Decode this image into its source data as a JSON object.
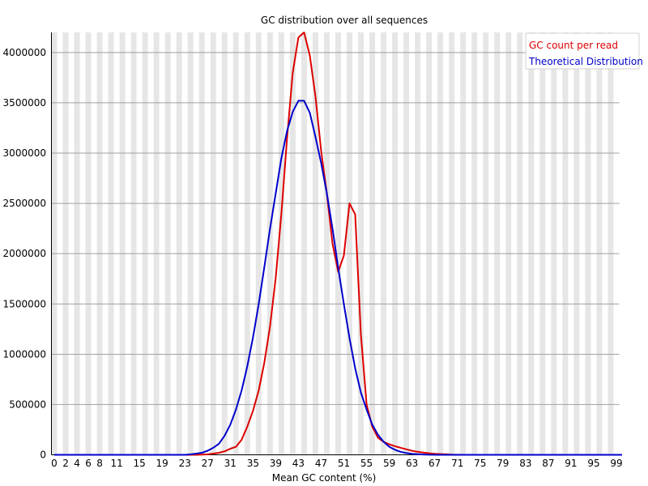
{
  "chart_data": {
    "type": "line",
    "title": "GC distribution over all sequences",
    "xlabel": "Mean GC content (%)",
    "ylabel": "",
    "xlim": [
      0,
      100
    ],
    "ylim": [
      0,
      4200000
    ],
    "x_tick_labels": [
      "0",
      "2",
      "4",
      "6",
      "8",
      "11",
      "15",
      "19",
      "23",
      "27",
      "31",
      "35",
      "39",
      "43",
      "47",
      "51",
      "55",
      "59",
      "63",
      "67",
      "71",
      "75",
      "79",
      "83",
      "87",
      "91",
      "95",
      "99"
    ],
    "x_tick_positions": [
      0,
      2,
      4,
      6,
      8,
      11,
      15,
      19,
      23,
      27,
      31,
      35,
      39,
      43,
      47,
      51,
      55,
      59,
      63,
      67,
      71,
      75,
      79,
      83,
      87,
      91,
      95,
      99
    ],
    "y_ticks": [
      0,
      500000,
      1000000,
      1500000,
      2000000,
      2500000,
      3000000,
      3500000,
      4000000
    ],
    "y_tick_labels": [
      "0",
      "500000",
      "1000000",
      "1500000",
      "2000000",
      "2500000",
      "3000000",
      "3500000",
      "4000000"
    ],
    "grid": "horizontal",
    "background_bands": "alternating-vertical",
    "legend_position": "top-right",
    "series": [
      {
        "name": "GC count per read",
        "color": "#dd0000",
        "points": [
          [
            0,
            0
          ],
          [
            2,
            0
          ],
          [
            4,
            0
          ],
          [
            6,
            0
          ],
          [
            8,
            0
          ],
          [
            10,
            0
          ],
          [
            12,
            0
          ],
          [
            14,
            0
          ],
          [
            16,
            0
          ],
          [
            18,
            0
          ],
          [
            20,
            0
          ],
          [
            22,
            0
          ],
          [
            24,
            0
          ],
          [
            25,
            0
          ],
          [
            26,
            2000
          ],
          [
            27,
            5000
          ],
          [
            28,
            12000
          ],
          [
            29,
            20000
          ],
          [
            30,
            35000
          ],
          [
            31,
            60000
          ],
          [
            32,
            80000
          ],
          [
            33,
            150000
          ],
          [
            34,
            280000
          ],
          [
            35,
            440000
          ],
          [
            36,
            640000
          ],
          [
            37,
            920000
          ],
          [
            38,
            1280000
          ],
          [
            39,
            1760000
          ],
          [
            40,
            2400000
          ],
          [
            41,
            3150000
          ],
          [
            42,
            3800000
          ],
          [
            43,
            4150000
          ],
          [
            44,
            4200000
          ],
          [
            45,
            3970000
          ],
          [
            46,
            3560000
          ],
          [
            47,
            3020000
          ],
          [
            48,
            2600000
          ],
          [
            49,
            2100000
          ],
          [
            50,
            1820000
          ],
          [
            51,
            1980000
          ],
          [
            52,
            2500000
          ],
          [
            53,
            2390000
          ],
          [
            54,
            1200000
          ],
          [
            55,
            500000
          ],
          [
            56,
            280000
          ],
          [
            57,
            170000
          ],
          [
            58,
            130000
          ],
          [
            59,
            105000
          ],
          [
            60,
            85000
          ],
          [
            61,
            70000
          ],
          [
            62,
            55000
          ],
          [
            63,
            40000
          ],
          [
            64,
            30000
          ],
          [
            65,
            22000
          ],
          [
            66,
            15000
          ],
          [
            67,
            10000
          ],
          [
            68,
            7000
          ],
          [
            69,
            5000
          ],
          [
            70,
            2000
          ],
          [
            72,
            0
          ],
          [
            80,
            0
          ],
          [
            90,
            0
          ],
          [
            99,
            0
          ],
          [
            100,
            0
          ]
        ]
      },
      {
        "name": "Theoretical Distribution",
        "color": "#0000cc",
        "points": [
          [
            0,
            0
          ],
          [
            2,
            0
          ],
          [
            4,
            0
          ],
          [
            6,
            0
          ],
          [
            8,
            0
          ],
          [
            10,
            0
          ],
          [
            12,
            0
          ],
          [
            14,
            0
          ],
          [
            16,
            0
          ],
          [
            18,
            0
          ],
          [
            20,
            0
          ],
          [
            22,
            0
          ],
          [
            23,
            0
          ],
          [
            24,
            5000
          ],
          [
            25,
            12000
          ],
          [
            26,
            20000
          ],
          [
            27,
            40000
          ],
          [
            28,
            70000
          ],
          [
            29,
            110000
          ],
          [
            30,
            190000
          ],
          [
            31,
            300000
          ],
          [
            32,
            450000
          ],
          [
            33,
            640000
          ],
          [
            34,
            880000
          ],
          [
            35,
            1170000
          ],
          [
            36,
            1500000
          ],
          [
            37,
            1870000
          ],
          [
            38,
            2250000
          ],
          [
            39,
            2600000
          ],
          [
            40,
            2950000
          ],
          [
            41,
            3220000
          ],
          [
            42,
            3410000
          ],
          [
            43,
            3520000
          ],
          [
            44,
            3520000
          ],
          [
            45,
            3400000
          ],
          [
            46,
            3160000
          ],
          [
            47,
            2900000
          ],
          [
            48,
            2600000
          ],
          [
            49,
            2250000
          ],
          [
            50,
            1860000
          ],
          [
            51,
            1500000
          ],
          [
            52,
            1160000
          ],
          [
            53,
            860000
          ],
          [
            54,
            620000
          ],
          [
            55,
            450000
          ],
          [
            56,
            300000
          ],
          [
            57,
            200000
          ],
          [
            58,
            130000
          ],
          [
            59,
            80000
          ],
          [
            60,
            50000
          ],
          [
            61,
            30000
          ],
          [
            62,
            18000
          ],
          [
            63,
            10000
          ],
          [
            64,
            6000
          ],
          [
            65,
            3000
          ],
          [
            66,
            1000
          ],
          [
            68,
            0
          ],
          [
            80,
            0
          ],
          [
            90,
            0
          ],
          [
            99,
            0
          ],
          [
            100,
            0
          ]
        ]
      }
    ]
  }
}
